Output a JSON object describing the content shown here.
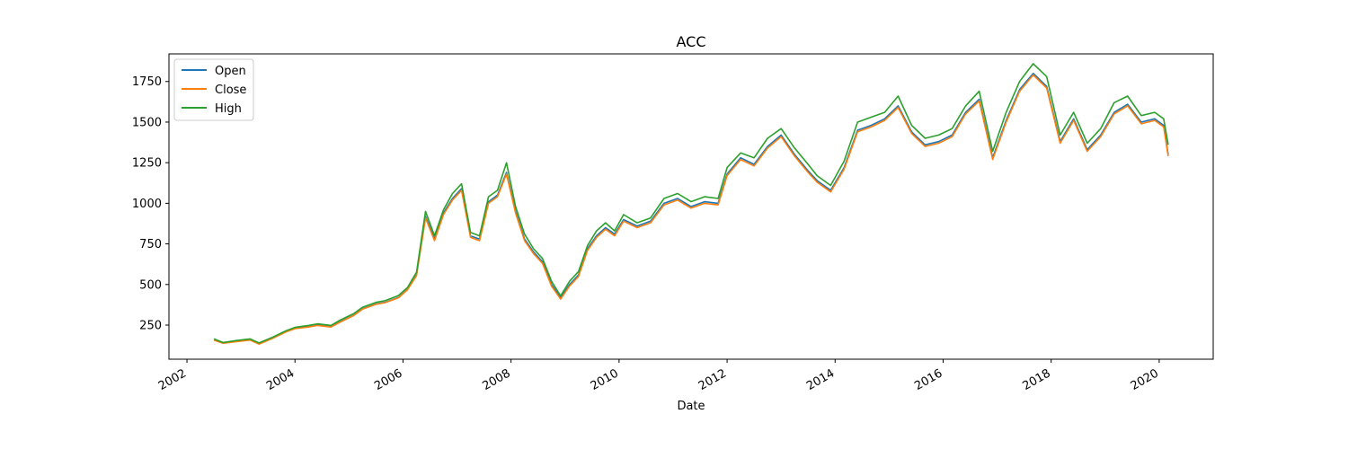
{
  "chart_data": {
    "type": "line",
    "title": "ACC",
    "xlabel": "Date",
    "ylabel": "",
    "xlim": [
      "2001-09-01",
      "2021-01-01"
    ],
    "ylim": [
      40,
      1920
    ],
    "x_ticks": [
      "2002",
      "2004",
      "2006",
      "2008",
      "2010",
      "2012",
      "2014",
      "2016",
      "2018",
      "2020"
    ],
    "y_ticks": [
      250,
      500,
      750,
      1000,
      1250,
      1500,
      1750
    ],
    "grid": false,
    "legend": {
      "position": "top-left",
      "entries": [
        "Open",
        "Close",
        "High"
      ]
    },
    "colors": {
      "Open": "#1f77b4",
      "Close": "#ff7f0e",
      "High": "#2ca02c"
    },
    "x": [
      "2002-07",
      "2002-09",
      "2002-12",
      "2003-03",
      "2003-05",
      "2003-08",
      "2003-11",
      "2004-01",
      "2004-04",
      "2004-06",
      "2004-09",
      "2004-11",
      "2005-02",
      "2005-04",
      "2005-07",
      "2005-09",
      "2005-12",
      "2006-02",
      "2006-04",
      "2006-06",
      "2006-08",
      "2006-10",
      "2006-12",
      "2007-02",
      "2007-04",
      "2007-06",
      "2007-08",
      "2007-10",
      "2007-12",
      "2008-02",
      "2008-04",
      "2008-06",
      "2008-08",
      "2008-10",
      "2008-12",
      "2009-02",
      "2009-04",
      "2009-06",
      "2009-08",
      "2009-10",
      "2009-12",
      "2010-02",
      "2010-05",
      "2010-08",
      "2010-11",
      "2011-02",
      "2011-05",
      "2011-08",
      "2011-11",
      "2012-01",
      "2012-04",
      "2012-07",
      "2012-10",
      "2013-01",
      "2013-04",
      "2013-07",
      "2013-09",
      "2013-12",
      "2014-03",
      "2014-06",
      "2014-09",
      "2014-12",
      "2015-03",
      "2015-06",
      "2015-09",
      "2015-12",
      "2016-03",
      "2016-06",
      "2016-09",
      "2016-12",
      "2017-03",
      "2017-06",
      "2017-09",
      "2017-12",
      "2018-03",
      "2018-06",
      "2018-09",
      "2018-12",
      "2019-03",
      "2019-06",
      "2019-09",
      "2019-12",
      "2020-02",
      "2020-03"
    ],
    "series": [
      {
        "name": "Open",
        "values": [
          160,
          140,
          150,
          160,
          135,
          170,
          210,
          230,
          240,
          250,
          240,
          270,
          310,
          350,
          380,
          390,
          420,
          470,
          560,
          920,
          780,
          940,
          1030,
          1090,
          800,
          780,
          1010,
          1050,
          1190,
          950,
          780,
          700,
          640,
          500,
          420,
          500,
          560,
          720,
          800,
          850,
          810,
          900,
          860,
          890,
          1000,
          1030,
          980,
          1010,
          1000,
          1180,
          1280,
          1240,
          1350,
          1420,
          1300,
          1200,
          1140,
          1080,
          1220,
          1450,
          1480,
          1520,
          1600,
          1440,
          1360,
          1380,
          1420,
          1560,
          1640,
          1280,
          1510,
          1700,
          1800,
          1720,
          1380,
          1520,
          1330,
          1420,
          1560,
          1610,
          1500,
          1520,
          1480,
          1300
        ]
      },
      {
        "name": "Close",
        "values": [
          158,
          138,
          148,
          158,
          133,
          168,
          208,
          228,
          238,
          248,
          238,
          268,
          308,
          348,
          378,
          388,
          418,
          468,
          555,
          910,
          770,
          930,
          1020,
          1080,
          790,
          770,
          1000,
          1040,
          1180,
          940,
          770,
          690,
          630,
          490,
          410,
          490,
          550,
          710,
          790,
          840,
          800,
          890,
          850,
          880,
          990,
          1020,
          970,
          1000,
          990,
          1170,
          1270,
          1230,
          1340,
          1410,
          1290,
          1190,
          1130,
          1070,
          1210,
          1440,
          1470,
          1510,
          1590,
          1430,
          1350,
          1370,
          1410,
          1550,
          1630,
          1270,
          1500,
          1690,
          1790,
          1710,
          1370,
          1510,
          1320,
          1410,
          1550,
          1600,
          1490,
          1510,
          1470,
          1290
        ]
      },
      {
        "name": "High",
        "values": [
          165,
          143,
          155,
          165,
          140,
          175,
          215,
          236,
          248,
          258,
          248,
          280,
          320,
          360,
          390,
          400,
          432,
          482,
          575,
          950,
          800,
          960,
          1060,
          1120,
          820,
          800,
          1040,
          1080,
          1250,
          980,
          810,
          720,
          660,
          520,
          430,
          520,
          580,
          740,
          830,
          880,
          830,
          930,
          880,
          910,
          1030,
          1060,
          1010,
          1040,
          1030,
          1220,
          1310,
          1280,
          1400,
          1460,
          1340,
          1240,
          1170,
          1110,
          1260,
          1500,
          1530,
          1560,
          1660,
          1480,
          1400,
          1420,
          1460,
          1600,
          1690,
          1320,
          1560,
          1750,
          1860,
          1780,
          1420,
          1560,
          1370,
          1460,
          1620,
          1660,
          1540,
          1560,
          1520,
          1360
        ]
      }
    ]
  }
}
